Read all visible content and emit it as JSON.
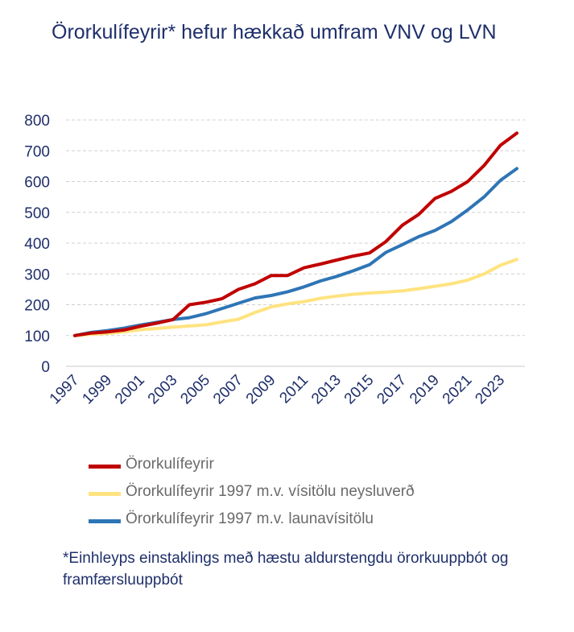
{
  "chart_data": {
    "type": "line",
    "title": "Örorkulífeyrir* hefur hækkað umfram VNV og LVN",
    "x": [
      1997,
      1998,
      1999,
      2000,
      2001,
      2002,
      2003,
      2004,
      2005,
      2006,
      2007,
      2008,
      2009,
      2010,
      2011,
      2012,
      2013,
      2014,
      2015,
      2016,
      2017,
      2018,
      2019,
      2020,
      2021,
      2022,
      2023,
      2024
    ],
    "x_tick_labels": [
      "1997",
      "1999",
      "2001",
      "2003",
      "2005",
      "2007",
      "2009",
      "2011",
      "2013",
      "2015",
      "2017",
      "2019",
      "2021",
      "2023"
    ],
    "ylim": [
      0,
      800
    ],
    "y_ticks": [
      "0",
      "100",
      "200",
      "300",
      "400",
      "500",
      "600",
      "700",
      "800"
    ],
    "grid": true,
    "legend_position": "bottom",
    "series": [
      {
        "name": "Örorkulífeyrir",
        "color": "#c00000",
        "values": [
          100,
          108,
          112,
          118,
          130,
          140,
          152,
          200,
          208,
          220,
          250,
          268,
          295,
          295,
          320,
          332,
          345,
          358,
          368,
          405,
          458,
          493,
          545,
          568,
          600,
          652,
          718,
          757
        ]
      },
      {
        "name": "Örorkulífeyrir 1997 m.v. vísitölu neysluverð",
        "color": "#ffe380",
        "values": [
          100,
          104,
          107,
          112,
          119,
          123,
          127,
          131,
          135,
          144,
          153,
          175,
          193,
          203,
          210,
          221,
          228,
          234,
          238,
          241,
          245,
          252,
          260,
          268,
          280,
          300,
          328,
          347
        ]
      },
      {
        "name": "Örorkulífeyrir 1997 m.v. launavísitölu",
        "color": "#2e75b6",
        "values": [
          100,
          110,
          116,
          124,
          134,
          143,
          152,
          158,
          171,
          188,
          205,
          222,
          230,
          242,
          258,
          277,
          292,
          310,
          330,
          370,
          395,
          421,
          441,
          470,
          508,
          550,
          604,
          642
        ]
      }
    ],
    "footnote": "*Einhleyps einstaklings með hæstu aldurstengdu örorkuuppbót og framfærsluuppbót"
  }
}
